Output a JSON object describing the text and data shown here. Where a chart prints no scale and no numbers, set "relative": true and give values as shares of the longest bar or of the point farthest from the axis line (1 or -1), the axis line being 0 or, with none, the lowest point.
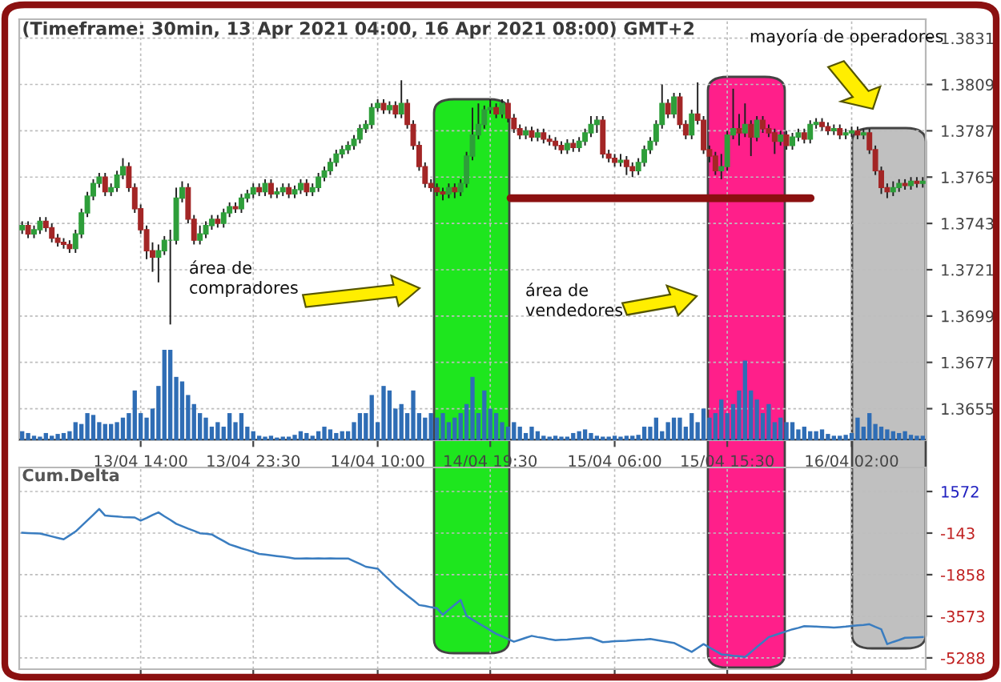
{
  "chart_data": [
    {
      "type": "candlestick",
      "title": "(Timeframe: 30min, 13 Apr 2021 04:00, 16 Apr 2021 08:00) GMT+2",
      "categories": [
        null,
        null,
        null,
        null,
        null,
        null,
        null,
        null,
        null,
        null,
        null,
        null,
        null,
        null,
        null,
        null,
        null,
        null,
        null,
        null,
        "13/04 14:00",
        null,
        null,
        null,
        null,
        null,
        null,
        null,
        null,
        null,
        null,
        null,
        null,
        null,
        null,
        null,
        null,
        null,
        null,
        "13/04 23:30",
        null,
        null,
        null,
        null,
        null,
        null,
        null,
        null,
        null,
        null,
        null,
        null,
        null,
        null,
        null,
        null,
        null,
        null,
        null,
        null,
        "14/04 10:00",
        null,
        null,
        null,
        null,
        null,
        null,
        null,
        null,
        null,
        null,
        null,
        null,
        null,
        null,
        null,
        null,
        null,
        null,
        "14/04 19:30",
        null,
        null,
        null,
        null,
        null,
        null,
        null,
        null,
        null,
        null,
        null,
        null,
        null,
        null,
        null,
        null,
        null,
        null,
        null,
        null,
        "15/04 06:00",
        null,
        null,
        null,
        null,
        null,
        null,
        null,
        null,
        null,
        null,
        null,
        null,
        null,
        null,
        null,
        null,
        null,
        null,
        "15/04 15:30",
        null,
        null,
        null,
        null,
        null,
        null,
        null,
        null,
        null,
        null,
        null,
        null,
        null,
        null,
        null,
        null,
        null,
        null,
        null,
        null,
        "16/04 02:00",
        null,
        null,
        null,
        null,
        null,
        null,
        null,
        null,
        null,
        null,
        null,
        null
      ],
      "ohlc": [
        [
          1.374,
          1.3744,
          1.3738,
          1.3742
        ],
        [
          1.3742,
          1.3744,
          1.3736,
          1.3738
        ],
        [
          1.3738,
          1.3742,
          1.3736,
          1.374
        ],
        [
          1.374,
          1.3746,
          1.3738,
          1.3744
        ],
        [
          1.3744,
          1.3746,
          1.3739,
          1.3741
        ],
        [
          1.3741,
          1.3743,
          1.3734,
          1.3736
        ],
        [
          1.3736,
          1.3738,
          1.3732,
          1.3734
        ],
        [
          1.3734,
          1.3736,
          1.3731,
          1.3733
        ],
        [
          1.3733,
          1.3735,
          1.3729,
          1.3731
        ],
        [
          1.3731,
          1.374,
          1.3729,
          1.3738
        ],
        [
          1.3738,
          1.375,
          1.3736,
          1.3748
        ],
        [
          1.3748,
          1.3758,
          1.3746,
          1.3756
        ],
        [
          1.3756,
          1.3764,
          1.3754,
          1.3762
        ],
        [
          1.3762,
          1.3767,
          1.376,
          1.3765
        ],
        [
          1.3765,
          1.3767,
          1.3756,
          1.3758
        ],
        [
          1.3758,
          1.3762,
          1.3756,
          1.376
        ],
        [
          1.376,
          1.3768,
          1.3758,
          1.3766
        ],
        [
          1.3766,
          1.3774,
          1.3764,
          1.377
        ],
        [
          1.377,
          1.3772,
          1.3758,
          1.376
        ],
        [
          1.376,
          1.3762,
          1.3748,
          1.375
        ],
        [
          1.375,
          1.3752,
          1.3738,
          1.374
        ],
        [
          1.374,
          1.3742,
          1.3726,
          1.373
        ],
        [
          1.373,
          1.3734,
          1.372,
          1.3727
        ],
        [
          1.3727,
          1.3733,
          1.3715,
          1.373
        ],
        [
          1.373,
          1.3737,
          1.3728,
          1.3735
        ],
        [
          1.3735,
          1.374,
          1.3695,
          1.3735
        ],
        [
          1.3735,
          1.376,
          1.3733,
          1.3755
        ],
        [
          1.3755,
          1.3763,
          1.3753,
          1.376
        ],
        [
          1.376,
          1.3762,
          1.3743,
          1.3745
        ],
        [
          1.3745,
          1.3747,
          1.3733,
          1.3735
        ],
        [
          1.3735,
          1.3742,
          1.3733,
          1.3738
        ],
        [
          1.3738,
          1.3744,
          1.3736,
          1.3742
        ],
        [
          1.3742,
          1.3747,
          1.374,
          1.3745
        ],
        [
          1.3745,
          1.3747,
          1.3741,
          1.3743
        ],
        [
          1.3743,
          1.375,
          1.3741,
          1.3748
        ],
        [
          1.3748,
          1.3753,
          1.3746,
          1.3751
        ],
        [
          1.3751,
          1.3753,
          1.3748,
          1.375
        ],
        [
          1.375,
          1.3757,
          1.3748,
          1.3755
        ],
        [
          1.3755,
          1.3759,
          1.3753,
          1.3757
        ],
        [
          1.3757,
          1.3762,
          1.3755,
          1.376
        ],
        [
          1.376,
          1.3762,
          1.3756,
          1.3758
        ],
        [
          1.3758,
          1.3764,
          1.3756,
          1.3762
        ],
        [
          1.3762,
          1.3764,
          1.3755,
          1.3757
        ],
        [
          1.3757,
          1.376,
          1.3755,
          1.3758
        ],
        [
          1.3758,
          1.3762,
          1.3756,
          1.376
        ],
        [
          1.376,
          1.3762,
          1.3755,
          1.3757
        ],
        [
          1.3757,
          1.3761,
          1.3755,
          1.3759
        ],
        [
          1.3759,
          1.3764,
          1.3757,
          1.3762
        ],
        [
          1.3762,
          1.3764,
          1.3756,
          1.3758
        ],
        [
          1.3758,
          1.3762,
          1.3756,
          1.376
        ],
        [
          1.376,
          1.3767,
          1.3758,
          1.3765
        ],
        [
          1.3765,
          1.377,
          1.3763,
          1.3768
        ],
        [
          1.3768,
          1.3774,
          1.3766,
          1.3772
        ],
        [
          1.3772,
          1.3778,
          1.377,
          1.3776
        ],
        [
          1.3776,
          1.378,
          1.3774,
          1.3778
        ],
        [
          1.3778,
          1.3782,
          1.3776,
          1.378
        ],
        [
          1.378,
          1.3785,
          1.3778,
          1.3783
        ],
        [
          1.3783,
          1.379,
          1.3781,
          1.3788
        ],
        [
          1.3788,
          1.3792,
          1.3786,
          1.379
        ],
        [
          1.379,
          1.38,
          1.3788,
          1.3798
        ],
        [
          1.3798,
          1.3802,
          1.3796,
          1.38
        ],
        [
          1.38,
          1.3802,
          1.3795,
          1.3797
        ],
        [
          1.3797,
          1.3801,
          1.3795,
          1.3799
        ],
        [
          1.3799,
          1.3801,
          1.3793,
          1.3795
        ],
        [
          1.3795,
          1.3811,
          1.3793,
          1.38
        ],
        [
          1.38,
          1.3802,
          1.3788,
          1.379
        ],
        [
          1.379,
          1.3792,
          1.3778,
          1.378
        ],
        [
          1.378,
          1.3782,
          1.3768,
          1.377
        ],
        [
          1.377,
          1.3772,
          1.376,
          1.3762
        ],
        [
          1.3762,
          1.3764,
          1.3758,
          1.376
        ],
        [
          1.376,
          1.3762,
          1.3756,
          1.3758
        ],
        [
          1.3758,
          1.376,
          1.3754,
          1.3757
        ],
        [
          1.3757,
          1.3762,
          1.3755,
          1.376
        ],
        [
          1.376,
          1.3762,
          1.3755,
          1.3758
        ],
        [
          1.3758,
          1.3764,
          1.3756,
          1.3762
        ],
        [
          1.3762,
          1.3777,
          1.376,
          1.3775
        ],
        [
          1.3775,
          1.3798,
          1.3773,
          1.3785
        ],
        [
          1.3785,
          1.38,
          1.3783,
          1.379
        ],
        [
          1.379,
          1.3799,
          1.3788,
          1.3797
        ],
        [
          1.3797,
          1.3802,
          1.3795,
          1.3798
        ],
        [
          1.3798,
          1.38,
          1.3793,
          1.3795
        ],
        [
          1.3795,
          1.3802,
          1.3793,
          1.38
        ],
        [
          1.38,
          1.3802,
          1.3791,
          1.3793
        ],
        [
          1.3793,
          1.3795,
          1.3786,
          1.3788
        ],
        [
          1.3788,
          1.379,
          1.3783,
          1.3785
        ],
        [
          1.3785,
          1.3789,
          1.3783,
          1.3787
        ],
        [
          1.3787,
          1.3789,
          1.3782,
          1.3784
        ],
        [
          1.3784,
          1.3788,
          1.3782,
          1.3786
        ],
        [
          1.3786,
          1.3788,
          1.3781,
          1.3783
        ],
        [
          1.3783,
          1.3785,
          1.378,
          1.3782
        ],
        [
          1.3782,
          1.3784,
          1.3778,
          1.378
        ],
        [
          1.378,
          1.3782,
          1.3776,
          1.3778
        ],
        [
          1.3778,
          1.3783,
          1.3776,
          1.3781
        ],
        [
          1.3781,
          1.3783,
          1.3777,
          1.3779
        ],
        [
          1.3779,
          1.3784,
          1.3777,
          1.3782
        ],
        [
          1.3782,
          1.3788,
          1.378,
          1.3786
        ],
        [
          1.3786,
          1.3794,
          1.3784,
          1.379
        ],
        [
          1.379,
          1.3794,
          1.3786,
          1.3792
        ],
        [
          1.3792,
          1.3794,
          1.3774,
          1.3776
        ],
        [
          1.3776,
          1.3778,
          1.3772,
          1.3774
        ],
        [
          1.3774,
          1.3776,
          1.377,
          1.3772
        ],
        [
          1.3772,
          1.3776,
          1.377,
          1.3773
        ],
        [
          1.3773,
          1.3775,
          1.3766,
          1.377
        ],
        [
          1.377,
          1.3772,
          1.3765,
          1.3768
        ],
        [
          1.3768,
          1.3774,
          1.3766,
          1.3772
        ],
        [
          1.3772,
          1.378,
          1.377,
          1.3778
        ],
        [
          1.3778,
          1.3784,
          1.3776,
          1.3782
        ],
        [
          1.3782,
          1.3792,
          1.378,
          1.379
        ],
        [
          1.379,
          1.3809,
          1.3788,
          1.38
        ],
        [
          1.38,
          1.3802,
          1.3793,
          1.3795
        ],
        [
          1.3795,
          1.3805,
          1.3793,
          1.3803
        ],
        [
          1.3803,
          1.3805,
          1.3788,
          1.379
        ],
        [
          1.379,
          1.3792,
          1.3783,
          1.3785
        ],
        [
          1.3785,
          1.3797,
          1.3783,
          1.3795
        ],
        [
          1.3795,
          1.381,
          1.379,
          1.3792
        ],
        [
          1.3792,
          1.3794,
          1.3776,
          1.3778
        ],
        [
          1.3778,
          1.378,
          1.3772,
          1.3775
        ],
        [
          1.3775,
          1.3777,
          1.3766,
          1.3768
        ],
        [
          1.3768,
          1.3776,
          1.3764,
          1.377
        ],
        [
          1.377,
          1.3787,
          1.3768,
          1.3785
        ],
        [
          1.3785,
          1.3807,
          1.3783,
          1.3788
        ],
        [
          1.3788,
          1.3795,
          1.378,
          1.3786
        ],
        [
          1.3786,
          1.38,
          1.3784,
          1.379
        ],
        [
          1.379,
          1.3792,
          1.3775,
          1.3784
        ],
        [
          1.3784,
          1.3794,
          1.3782,
          1.3792
        ],
        [
          1.3792,
          1.3794,
          1.3786,
          1.3788
        ],
        [
          1.3788,
          1.379,
          1.3784,
          1.3786
        ],
        [
          1.3786,
          1.3788,
          1.3776,
          1.3782
        ],
        [
          1.3782,
          1.3787,
          1.378,
          1.3785
        ],
        [
          1.3785,
          1.3787,
          1.3778,
          1.378
        ],
        [
          1.378,
          1.3786,
          1.3778,
          1.3784
        ],
        [
          1.3784,
          1.3788,
          1.3782,
          1.3786
        ],
        [
          1.3786,
          1.3788,
          1.3781,
          1.3783
        ],
        [
          1.3783,
          1.3792,
          1.3781,
          1.379
        ],
        [
          1.379,
          1.3793,
          1.3788,
          1.3791
        ],
        [
          1.3791,
          1.3793,
          1.3787,
          1.3789
        ],
        [
          1.3789,
          1.3791,
          1.3785,
          1.3787
        ],
        [
          1.3787,
          1.379,
          1.3785,
          1.3788
        ],
        [
          1.3788,
          1.379,
          1.3783,
          1.3785
        ],
        [
          1.3785,
          1.3788,
          1.3783,
          1.3786
        ],
        [
          1.3786,
          1.3789,
          1.3784,
          1.3787
        ],
        [
          1.3787,
          1.3789,
          1.3783,
          1.3785
        ],
        [
          1.3785,
          1.3788,
          1.3783,
          1.3786
        ],
        [
          1.3786,
          1.3788,
          1.3776,
          1.3778
        ],
        [
          1.3778,
          1.378,
          1.3766,
          1.3768
        ],
        [
          1.3768,
          1.377,
          1.3757,
          1.376
        ],
        [
          1.376,
          1.3762,
          1.3755,
          1.3758
        ],
        [
          1.3758,
          1.3763,
          1.3756,
          1.376
        ],
        [
          1.376,
          1.3764,
          1.3758,
          1.3762
        ],
        [
          1.3762,
          1.3764,
          1.3759,
          1.3761
        ],
        [
          1.3761,
          1.3765,
          1.3759,
          1.3763
        ],
        [
          1.3763,
          1.3765,
          1.376,
          1.3762
        ],
        [
          1.3762,
          1.3765,
          1.376,
          1.3763
        ]
      ],
      "ylim": [
        1.364,
        1.384
      ],
      "yticks": [
        1.3831,
        1.3809,
        1.3787,
        1.3765,
        1.3743,
        1.3721,
        1.3699,
        1.3677,
        1.3655
      ],
      "grid": true,
      "ref_lines": [
        {
          "axis": "y",
          "value": 1.3755,
          "color": "#8b1010"
        }
      ],
      "annotations": [
        "área de\ncompradores",
        "área de\nvendedores",
        "mayoría de operadores"
      ]
    },
    {
      "type": "bar",
      "relative": true,
      "color": "#2f6db5",
      "tick_labels": false,
      "categories": [
        null,
        null,
        null,
        null,
        null,
        null,
        null,
        null,
        null,
        null,
        null,
        null,
        null,
        null,
        null,
        null,
        null,
        null,
        null,
        null,
        null,
        null,
        null,
        null,
        null,
        null,
        null,
        null,
        null,
        null,
        null,
        null,
        null,
        null,
        null,
        null,
        null,
        null,
        null,
        null,
        null,
        null,
        null,
        null,
        null,
        null,
        null,
        null,
        null,
        null,
        null,
        null,
        null,
        null,
        null,
        null,
        null,
        null,
        null,
        null,
        null,
        null,
        null,
        null,
        null,
        null,
        null,
        null,
        null,
        null,
        null,
        null,
        null,
        null,
        null,
        null,
        null,
        null,
        null,
        null,
        null,
        null,
        null,
        null,
        null,
        null,
        null,
        null,
        null,
        null,
        null,
        null,
        null,
        null,
        null,
        null,
        null,
        null,
        null,
        null,
        null,
        null,
        null,
        null,
        null,
        null,
        null,
        null,
        null,
        null,
        null,
        null,
        null,
        null,
        null,
        null,
        null,
        null,
        null,
        null,
        null,
        null,
        null,
        null,
        null,
        null,
        null,
        null,
        null,
        null,
        null,
        null,
        null,
        null,
        null,
        null,
        null,
        null,
        null,
        null,
        null,
        null,
        null,
        null,
        null,
        null,
        null,
        null,
        null,
        null,
        null,
        null,
        null
      ],
      "values": [
        0.1,
        0.08,
        0.05,
        0.04,
        0.08,
        0.05,
        0.07,
        0.08,
        0.1,
        0.2,
        0.18,
        0.3,
        0.28,
        0.2,
        0.18,
        0.18,
        0.2,
        0.25,
        0.3,
        0.55,
        0.3,
        0.25,
        0.35,
        0.6,
        1.0,
        1.0,
        0.7,
        0.65,
        0.5,
        0.4,
        0.3,
        0.25,
        0.15,
        0.2,
        0.15,
        0.3,
        0.2,
        0.3,
        0.15,
        0.1,
        0.05,
        0.04,
        0.05,
        0.03,
        0.04,
        0.04,
        0.06,
        0.1,
        0.08,
        0.05,
        0.1,
        0.15,
        0.12,
        0.08,
        0.1,
        0.1,
        0.2,
        0.3,
        0.3,
        0.5,
        0.2,
        0.6,
        0.55,
        0.35,
        0.4,
        0.3,
        0.55,
        0.3,
        0.25,
        0.3,
        0.25,
        0.3,
        0.2,
        0.25,
        0.3,
        0.4,
        0.7,
        0.3,
        0.55,
        0.35,
        0.3,
        0.2,
        0.15,
        0.2,
        0.15,
        0.08,
        0.15,
        0.1,
        0.05,
        0.04,
        0.05,
        0.04,
        0.04,
        0.08,
        0.1,
        0.12,
        0.08,
        0.05,
        0.04,
        0.04,
        0.05,
        0.04,
        0.05,
        0.05,
        0.06,
        0.15,
        0.15,
        0.25,
        0.1,
        0.2,
        0.25,
        0.25,
        0.15,
        0.3,
        0.2,
        0.35,
        0.25,
        0.3,
        0.45,
        0.3,
        0.4,
        0.55,
        0.88,
        0.55,
        0.45,
        0.3,
        0.4,
        0.2,
        0.25,
        0.2,
        0.2,
        0.12,
        0.15,
        0.1,
        0.1,
        0.12,
        0.07,
        0.05,
        0.05,
        0.06,
        0.08,
        0.25,
        0.15,
        0.3,
        0.18,
        0.15,
        0.12,
        0.1,
        0.08,
        0.1,
        0.06,
        0.05,
        0.05
      ]
    },
    {
      "type": "line",
      "title": "Cum.Delta",
      "color": "#3a7dc0",
      "grid": true,
      "tick_labels": "y",
      "categories": [
        null,
        null,
        null,
        null,
        null,
        null,
        null,
        null,
        null,
        null,
        null,
        null,
        null,
        null,
        null,
        null,
        null,
        null,
        null,
        null,
        null,
        null,
        null,
        null,
        null,
        null,
        null,
        null,
        null,
        null,
        null,
        null,
        null,
        null,
        null,
        null,
        null,
        null,
        null,
        null,
        null,
        null,
        null,
        null,
        null,
        null,
        null,
        null,
        null,
        null,
        null,
        null,
        null,
        null,
        null,
        null,
        null,
        null,
        null,
        null,
        null,
        null,
        null,
        null,
        null,
        null,
        null,
        null,
        null,
        null,
        null,
        null,
        null,
        null,
        null,
        null,
        null,
        null,
        null,
        null,
        null,
        null,
        null,
        null,
        null,
        null,
        null,
        null,
        null,
        null,
        null,
        null,
        null,
        null,
        null,
        null,
        null,
        null,
        null,
        null,
        null,
        null,
        null,
        null,
        null,
        null,
        null,
        null,
        null,
        null,
        null,
        null,
        null,
        null,
        null,
        null,
        null,
        null,
        null,
        null,
        null,
        null,
        null,
        null,
        null,
        null,
        null,
        null,
        null,
        null,
        null,
        null,
        null,
        null,
        null,
        null,
        null,
        null,
        null,
        null,
        null,
        null,
        null,
        null,
        null,
        null,
        null,
        null,
        null,
        null,
        null,
        null,
        null
      ],
      "values": [
        -130,
        -140,
        -150,
        -160,
        -220,
        -280,
        -340,
        -400,
        -240,
        -80,
        150,
        380,
        610,
        850,
        580,
        560,
        540,
        520,
        510,
        500,
        370,
        480,
        600,
        710,
        550,
        400,
        240,
        140,
        40,
        -50,
        -150,
        -170,
        -200,
        -340,
        -470,
        -610,
        -690,
        -770,
        -840,
        -920,
        -1000,
        -1030,
        -1060,
        -1090,
        -1120,
        -1150,
        -1190,
        -1190,
        -1180,
        -1190,
        -1180,
        -1190,
        -1180,
        -1190,
        -1190,
        -1190,
        -1300,
        -1410,
        -1530,
        -1570,
        -1610,
        -1850,
        -2080,
        -2320,
        -2520,
        -2720,
        -2910,
        -3110,
        -3150,
        -3200,
        -3240,
        -3510,
        -3300,
        -3100,
        -2900,
        -3560,
        -3710,
        -3860,
        -4000,
        -4150,
        -4300,
        -4400,
        -4510,
        -4620,
        -4540,
        -4460,
        -4380,
        -4430,
        -4470,
        -4520,
        -4560,
        -4540,
        -4530,
        -4510,
        -4490,
        -4470,
        -4460,
        -4550,
        -4640,
        -4620,
        -4600,
        -4590,
        -4580,
        -4560,
        -4540,
        -4530,
        -4510,
        -4550,
        -4590,
        -4630,
        -4670,
        -4790,
        -4920,
        -5040,
        -4880,
        -4720,
        -4860,
        -5000,
        -5140,
        -5170,
        -5200,
        -5220,
        -5250,
        -5050,
        -4840,
        -4640,
        -4430,
        -4350,
        -4270,
        -4190,
        -4110,
        -4050,
        -3980,
        -3990,
        -4000,
        -4010,
        -4020,
        -4040,
        -4020,
        -4000,
        -3970,
        -3950,
        -3930,
        -3900,
        -4010,
        -4110,
        -4720,
        -4630,
        -4550,
        -4460,
        -4450,
        -4440,
        -4430
      ],
      "ylim": [
        -5754,
        2562
      ],
      "yticks": [
        1572,
        -143,
        -1858,
        -3573,
        -5288
      ]
    }
  ]
}
